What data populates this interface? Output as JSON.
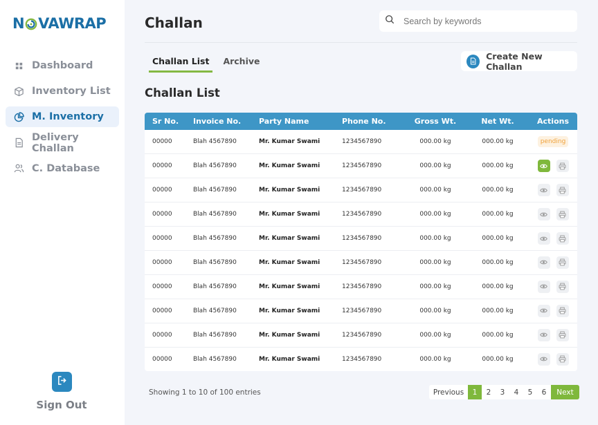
{
  "brand": {
    "logo_text_left": "N",
    "logo_text_right": "VAWRAP",
    "logo_colors": [
      "#1b6fa6",
      "#84b842"
    ]
  },
  "sidebar": {
    "items": [
      {
        "label": "Dashboard",
        "icon": "grid-icon",
        "active": false
      },
      {
        "label": "Inventory List",
        "icon": "box-icon",
        "active": false
      },
      {
        "label": "M. Inventory",
        "icon": "pie-chart-icon",
        "active": true
      },
      {
        "label": "Delivery Challan",
        "icon": "document-icon",
        "active": false
      },
      {
        "label": "C. Database",
        "icon": "users-icon",
        "active": false
      }
    ],
    "signout_label": "Sign Out"
  },
  "header": {
    "title": "Challan",
    "search_placeholder": "Search by keywords"
  },
  "tabs": [
    {
      "label": "Challan List",
      "active": true
    },
    {
      "label": "Archive",
      "active": false
    }
  ],
  "create_button_label": "Create New Challan",
  "section_title": "Challan List",
  "table": {
    "columns": [
      "Sr No.",
      "Invoice No.",
      "Party Name",
      "Phone No.",
      "Gross Wt.",
      "Net Wt.",
      "Actions"
    ],
    "rows": [
      {
        "sr": "00000",
        "invoice": "Blah 4567890",
        "party": "Mr. Kumar Swami",
        "phone": "1234567890",
        "gross": "000.00 kg",
        "net": "000.00 kg",
        "status": "pending"
      },
      {
        "sr": "00000",
        "invoice": "Blah 4567890",
        "party": "Mr. Kumar Swami",
        "phone": "1234567890",
        "gross": "000.00 kg",
        "net": "000.00 kg",
        "view_highlight": true
      },
      {
        "sr": "00000",
        "invoice": "Blah 4567890",
        "party": "Mr. Kumar Swami",
        "phone": "1234567890",
        "gross": "000.00 kg",
        "net": "000.00 kg"
      },
      {
        "sr": "00000",
        "invoice": "Blah 4567890",
        "party": "Mr. Kumar Swami",
        "phone": "1234567890",
        "gross": "000.00 kg",
        "net": "000.00 kg"
      },
      {
        "sr": "00000",
        "invoice": "Blah 4567890",
        "party": "Mr. Kumar Swami",
        "phone": "1234567890",
        "gross": "000.00 kg",
        "net": "000.00 kg"
      },
      {
        "sr": "00000",
        "invoice": "Blah 4567890",
        "party": "Mr. Kumar Swami",
        "phone": "1234567890",
        "gross": "000.00 kg",
        "net": "000.00 kg"
      },
      {
        "sr": "00000",
        "invoice": "Blah 4567890",
        "party": "Mr. Kumar Swami",
        "phone": "1234567890",
        "gross": "000.00 kg",
        "net": "000.00 kg"
      },
      {
        "sr": "00000",
        "invoice": "Blah 4567890",
        "party": "Mr. Kumar Swami",
        "phone": "1234567890",
        "gross": "000.00 kg",
        "net": "000.00 kg"
      },
      {
        "sr": "00000",
        "invoice": "Blah 4567890",
        "party": "Mr. Kumar Swami",
        "phone": "1234567890",
        "gross": "000.00 kg",
        "net": "000.00 kg"
      },
      {
        "sr": "00000",
        "invoice": "Blah 4567890",
        "party": "Mr. Kumar Swami",
        "phone": "1234567890",
        "gross": "000.00 kg",
        "net": "000.00 kg"
      }
    ]
  },
  "footer": {
    "entries_text": "Showing 1 to 10 of 100 entries",
    "pagination": {
      "previous": "Previous",
      "pages": [
        "1",
        "2",
        "3",
        "4",
        "5",
        "6"
      ],
      "current": "1",
      "next": "Next"
    }
  },
  "colors": {
    "accent_blue": "#3e96c6",
    "accent_green": "#7fb83c",
    "pending_text": "#f0a23a",
    "pending_bg": "#fdf1e0"
  }
}
